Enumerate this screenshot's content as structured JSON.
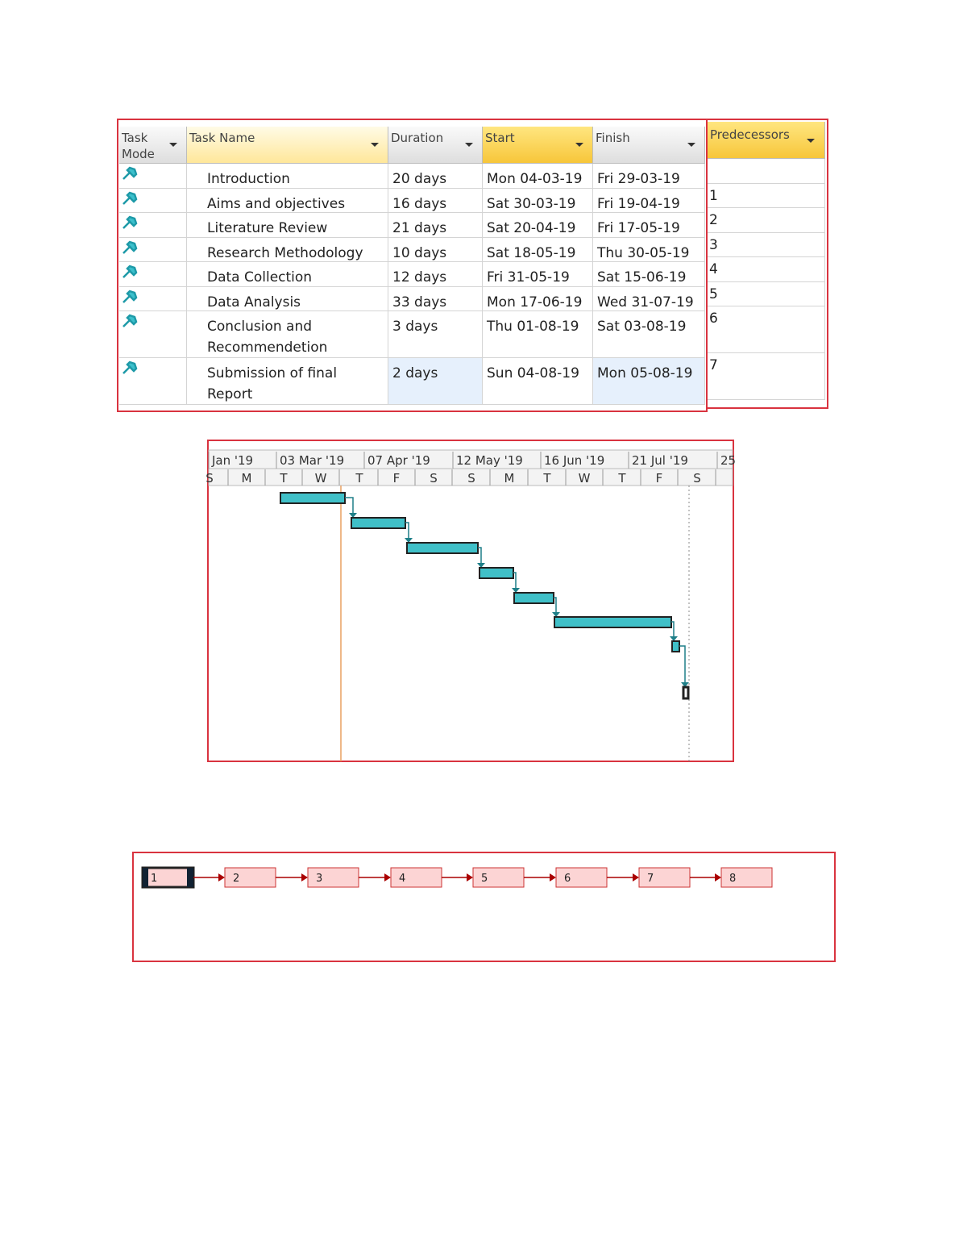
{
  "table": {
    "headers": [
      "Task Mode",
      "Task Name",
      "Duration",
      "Start",
      "Finish"
    ],
    "rows": [
      [
        "Introduction",
        "20 days",
        "Mon 04-03-19",
        "Fri 29-03-19"
      ],
      [
        "Aims and objectives",
        "16 days",
        "Sat 30-03-19",
        "Fri 19-04-19"
      ],
      [
        "Literature Review",
        "21 days",
        "Sat 20-04-19",
        "Fri 17-05-19"
      ],
      [
        "Research Methodology",
        "10 days",
        "Sat 18-05-19",
        "Thu 30-05-19"
      ],
      [
        "Data Collection",
        "12 days",
        "Fri 31-05-19",
        "Sat 15-06-19"
      ],
      [
        "Data Analysis",
        "33 days",
        "Mon 17-06-19",
        "Wed 31-07-19"
      ],
      [
        "Conclusion and Recommendetion",
        "3 days",
        "Thu 01-08-19",
        "Sat 03-08-19"
      ],
      [
        "Submission of final Report",
        "2 days",
        "Sun 04-08-19",
        "Mon 05-08-19"
      ]
    ]
  },
  "predecessors": {
    "header": "Predecessors",
    "values": [
      1,
      2,
      3,
      4,
      5,
      6,
      7
    ]
  },
  "gantt": {
    "periods": [
      "Jan '19",
      "03 Mar '19",
      "07 Apr '19",
      "12 May '19",
      "16 Jun '19",
      "21 Jul '19",
      "25"
    ],
    "days": [
      "S",
      "M",
      "T",
      "W",
      "T",
      "F",
      "S",
      "S",
      "M",
      "T",
      "W",
      "T",
      "F",
      "S"
    ]
  },
  "network": {
    "nodes": [
      1,
      2,
      3,
      4,
      5,
      6,
      7,
      8
    ]
  }
}
